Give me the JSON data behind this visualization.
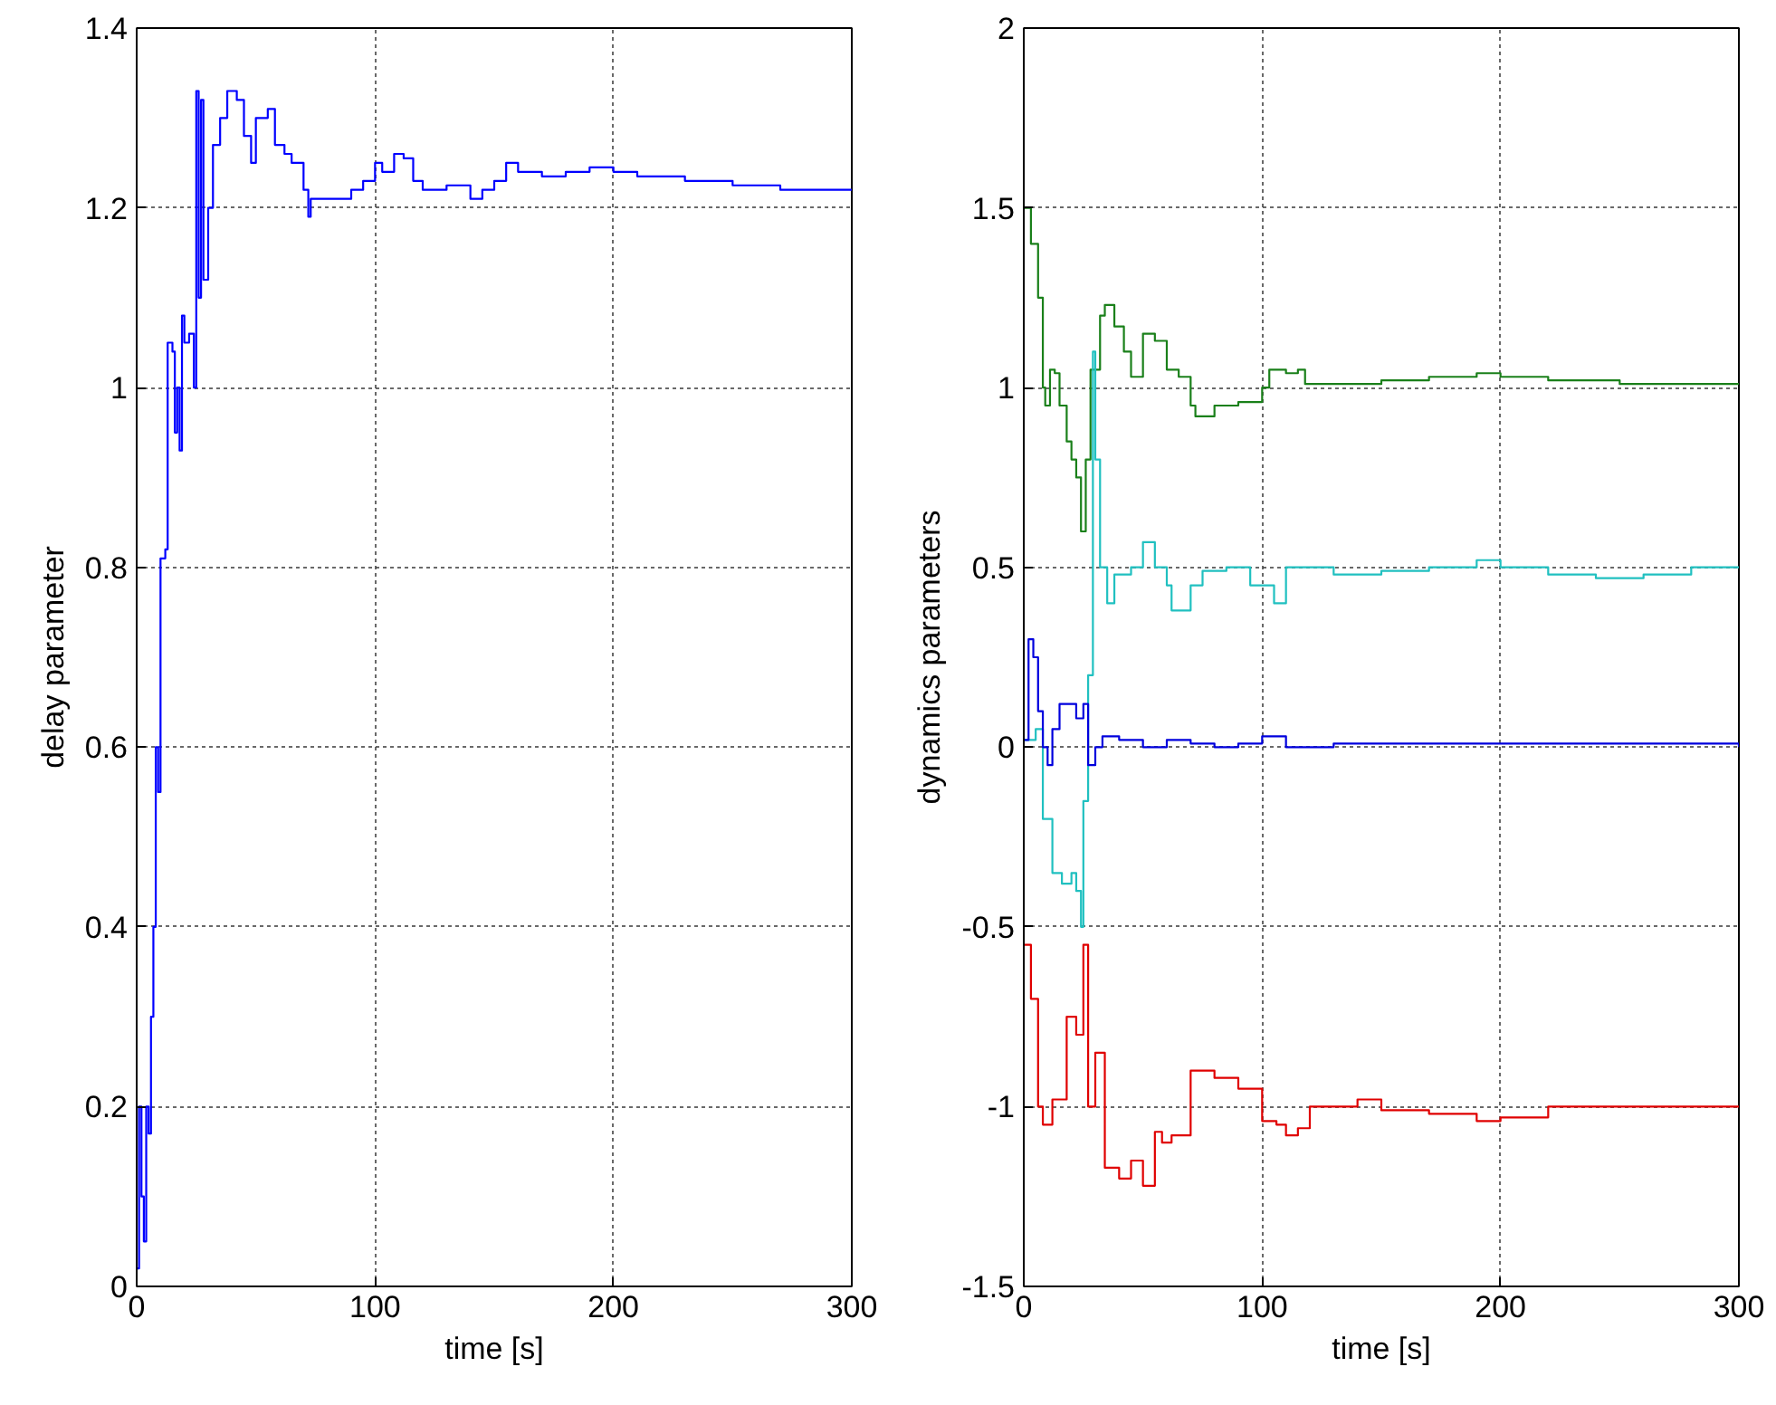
{
  "chart_data": [
    {
      "type": "step",
      "xlabel": "time [s]",
      "ylabel": "delay parameter",
      "xlim": [
        0,
        300
      ],
      "xticks": [
        0,
        100,
        200,
        300
      ],
      "ylim": [
        0,
        1.4
      ],
      "yticks": [
        0,
        0.2,
        0.4,
        0.6,
        0.8,
        1,
        1.2,
        1.4
      ],
      "grid": true,
      "x": [
        0,
        1,
        2,
        3,
        4,
        5,
        6,
        7,
        8,
        9,
        10,
        12,
        13,
        15,
        16,
        17,
        18,
        19,
        20,
        22,
        24,
        25,
        26,
        27,
        28,
        30,
        32,
        35,
        38,
        42,
        45,
        48,
        50,
        55,
        58,
        62,
        65,
        70,
        72,
        73,
        80,
        90,
        95,
        100,
        103,
        108,
        112,
        116,
        120,
        130,
        140,
        145,
        150,
        155,
        160,
        170,
        180,
        190,
        200,
        210,
        230,
        250,
        270,
        300
      ],
      "series": [
        {
          "color": "#0000ff",
          "values": [
            0.02,
            0.2,
            0.1,
            0.05,
            0.2,
            0.17,
            0.3,
            0.4,
            0.6,
            0.55,
            0.81,
            0.82,
            1.05,
            1.04,
            0.95,
            1.0,
            0.93,
            1.08,
            1.05,
            1.06,
            1.0,
            1.33,
            1.1,
            1.32,
            1.12,
            1.2,
            1.27,
            1.3,
            1.33,
            1.32,
            1.28,
            1.25,
            1.3,
            1.31,
            1.27,
            1.26,
            1.25,
            1.22,
            1.19,
            1.21,
            1.21,
            1.22,
            1.23,
            1.25,
            1.24,
            1.26,
            1.255,
            1.23,
            1.22,
            1.225,
            1.21,
            1.22,
            1.23,
            1.25,
            1.24,
            1.235,
            1.24,
            1.245,
            1.24,
            1.235,
            1.23,
            1.225,
            1.22,
            1.22
          ]
        }
      ]
    },
    {
      "type": "step",
      "xlabel": "time [s]",
      "ylabel": "dynamics parameters",
      "xlim": [
        0,
        300
      ],
      "xticks": [
        0,
        100,
        200,
        300
      ],
      "ylim": [
        -1.5,
        2
      ],
      "yticks": [
        -1.5,
        -1,
        -0.5,
        0,
        0.5,
        1,
        1.5,
        2
      ],
      "grid": true,
      "series": [
        {
          "color": "#1a801a",
          "x": [
            0,
            3,
            6,
            8,
            9,
            11,
            13,
            15,
            18,
            20,
            22,
            24,
            26,
            28,
            32,
            34,
            38,
            42,
            45,
            50,
            55,
            60,
            65,
            70,
            72,
            80,
            90,
            100,
            103,
            110,
            115,
            118,
            130,
            150,
            170,
            190,
            200,
            220,
            250,
            300
          ],
          "values": [
            1.5,
            1.4,
            1.25,
            1.0,
            0.95,
            1.05,
            1.04,
            0.95,
            0.85,
            0.8,
            0.75,
            0.6,
            0.8,
            1.05,
            1.2,
            1.23,
            1.17,
            1.1,
            1.03,
            1.15,
            1.13,
            1.05,
            1.03,
            0.95,
            0.92,
            0.95,
            0.96,
            1.0,
            1.05,
            1.04,
            1.05,
            1.01,
            1.01,
            1.02,
            1.03,
            1.04,
            1.03,
            1.02,
            1.01,
            1.01
          ]
        },
        {
          "color": "#20c0c0",
          "x": [
            0,
            5,
            8,
            12,
            16,
            20,
            22,
            24,
            25,
            27,
            29,
            30,
            32,
            35,
            38,
            45,
            50,
            55,
            60,
            62,
            70,
            75,
            85,
            95,
            105,
            110,
            120,
            130,
            150,
            170,
            190,
            200,
            220,
            240,
            260,
            280,
            300
          ],
          "values": [
            0.02,
            0.05,
            -0.2,
            -0.35,
            -0.38,
            -0.35,
            -0.4,
            -0.5,
            -0.15,
            0.2,
            1.1,
            0.8,
            0.5,
            0.4,
            0.48,
            0.5,
            0.57,
            0.5,
            0.45,
            0.38,
            0.45,
            0.49,
            0.5,
            0.45,
            0.4,
            0.5,
            0.5,
            0.48,
            0.49,
            0.5,
            0.52,
            0.5,
            0.48,
            0.47,
            0.48,
            0.5,
            0.5
          ]
        },
        {
          "color": "#0000dd",
          "x": [
            0,
            2,
            4,
            6,
            8,
            10,
            12,
            15,
            19,
            22,
            25,
            27,
            30,
            33,
            40,
            50,
            60,
            70,
            80,
            90,
            100,
            110,
            118,
            130,
            200,
            300
          ],
          "values": [
            0.02,
            0.3,
            0.25,
            0.1,
            0.0,
            -0.05,
            0.05,
            0.12,
            0.12,
            0.08,
            0.12,
            -0.05,
            0.0,
            0.03,
            0.02,
            0.0,
            0.02,
            0.01,
            0.0,
            0.01,
            0.03,
            0.0,
            0.0,
            0.01,
            0.01,
            0.0
          ]
        },
        {
          "color": "#e00000",
          "x": [
            0,
            3,
            6,
            8,
            12,
            18,
            22,
            25,
            27,
            30,
            34,
            40,
            45,
            50,
            55,
            58,
            62,
            70,
            80,
            90,
            100,
            106,
            110,
            115,
            120,
            140,
            150,
            170,
            190,
            200,
            220,
            300
          ],
          "values": [
            -0.55,
            -0.7,
            -1.0,
            -1.05,
            -0.98,
            -0.75,
            -0.8,
            -0.55,
            -1.0,
            -0.85,
            -1.17,
            -1.2,
            -1.15,
            -1.22,
            -1.07,
            -1.1,
            -1.08,
            -0.9,
            -0.92,
            -0.95,
            -1.04,
            -1.05,
            -1.08,
            -1.06,
            -1.0,
            -0.98,
            -1.01,
            -1.02,
            -1.04,
            -1.03,
            -1.0,
            -1.0
          ]
        }
      ]
    }
  ]
}
